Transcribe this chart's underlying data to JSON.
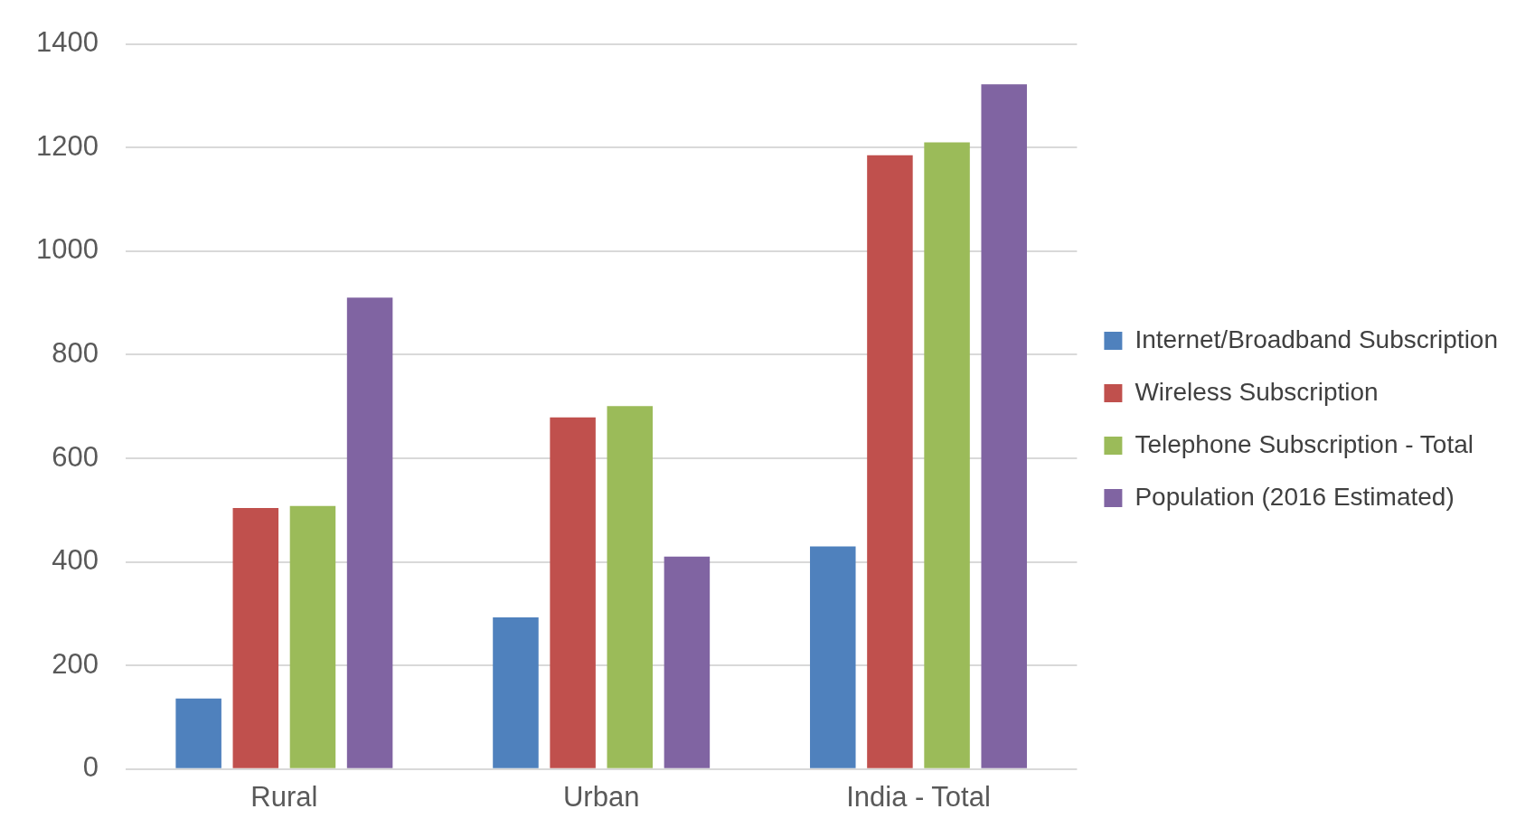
{
  "chart_data": {
    "type": "bar",
    "categories": [
      "Rural",
      "Urban",
      "India - Total"
    ],
    "series": [
      {
        "name": "Internet/Broadband Subscription",
        "color": "#4f81bd",
        "values": [
          136,
          293,
          430
        ]
      },
      {
        "name": "Wireless Subscription",
        "color": "#c0504d",
        "values": [
          504,
          679,
          1185
        ]
      },
      {
        "name": "Telephone Subscription - Total",
        "color": "#9bbb59",
        "values": [
          508,
          701,
          1210
        ]
      },
      {
        "name": "Population (2016 Estimated)",
        "color": "#8064a2",
        "values": [
          910,
          410,
          1322
        ]
      }
    ],
    "ylim": [
      0,
      1400
    ],
    "yticks": [
      0,
      200,
      400,
      600,
      800,
      1000,
      1200,
      1400
    ],
    "grid": "y",
    "legend": "right"
  }
}
